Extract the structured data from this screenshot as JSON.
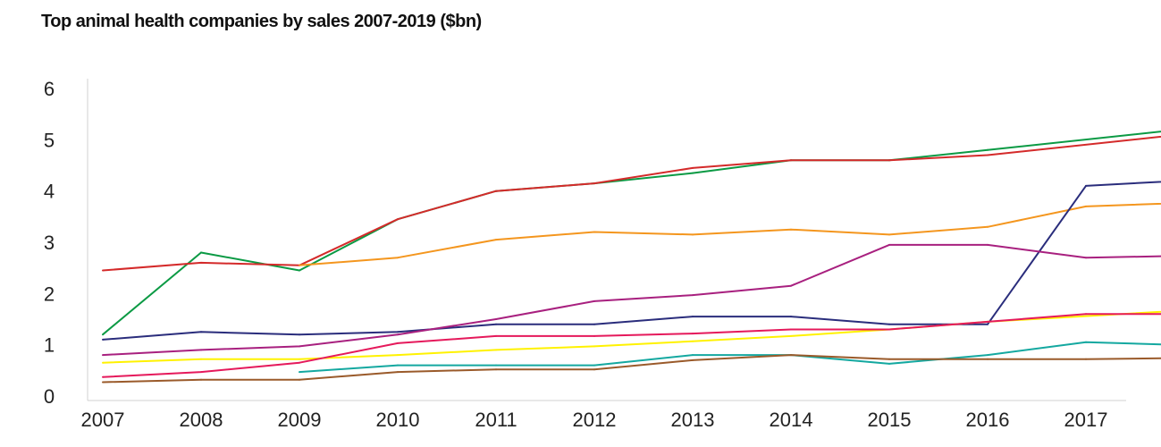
{
  "chart_data": {
    "type": "line",
    "title": "Top animal health companies by sales 2007-2019 ($bn)",
    "xlabel": "",
    "ylabel": "",
    "categories": [
      "2007",
      "2008",
      "2009",
      "2010",
      "2011",
      "2012",
      "2013",
      "2014",
      "2015",
      "2016",
      "2017"
    ],
    "x_extent_end": 11.45,
    "ylim": [
      0,
      6
    ],
    "yticks": [
      0,
      1,
      2,
      3,
      4,
      5,
      6
    ],
    "grid": false,
    "legend": "none",
    "series": [
      {
        "color": "#0b9a44",
        "points": [
          [
            0,
            1.2
          ],
          [
            1,
            2.8
          ],
          [
            2,
            2.45
          ],
          [
            3,
            3.45
          ],
          [
            4,
            4.0
          ],
          [
            5,
            4.15
          ],
          [
            6,
            4.35
          ],
          [
            7,
            4.6
          ],
          [
            8,
            4.6
          ],
          [
            9,
            4.8
          ],
          [
            11.45,
            5.3
          ]
        ]
      },
      {
        "color": "#d42a2a",
        "points": [
          [
            0,
            2.45
          ],
          [
            1,
            2.6
          ],
          [
            2,
            2.55
          ],
          [
            3,
            3.45
          ],
          [
            4,
            4.0
          ],
          [
            5,
            4.15
          ],
          [
            6,
            4.45
          ],
          [
            7,
            4.6
          ],
          [
            8,
            4.6
          ],
          [
            9,
            4.7
          ],
          [
            11.45,
            5.2
          ]
        ]
      },
      {
        "color": "#f4961e",
        "points": [
          [
            2,
            2.55
          ],
          [
            3,
            2.7
          ],
          [
            4,
            3.05
          ],
          [
            5,
            3.2
          ],
          [
            6,
            3.15
          ],
          [
            7,
            3.25
          ],
          [
            8,
            3.15
          ],
          [
            9,
            3.3
          ],
          [
            10,
            3.7
          ],
          [
            11.45,
            3.8
          ]
        ]
      },
      {
        "color": "#2a2d7c",
        "points": [
          [
            0,
            1.1
          ],
          [
            1,
            1.25
          ],
          [
            2,
            1.2
          ],
          [
            3,
            1.25
          ],
          [
            4,
            1.4
          ],
          [
            5,
            1.4
          ],
          [
            6,
            1.55
          ],
          [
            7,
            1.55
          ],
          [
            8,
            1.4
          ],
          [
            9,
            1.4
          ],
          [
            10,
            4.1
          ],
          [
            11.45,
            4.25
          ]
        ]
      },
      {
        "color": "#a8207f",
        "points": [
          [
            0,
            0.8
          ],
          [
            1,
            0.9
          ],
          [
            2,
            0.97
          ],
          [
            3,
            1.2
          ],
          [
            4,
            1.5
          ],
          [
            5,
            1.85
          ],
          [
            6,
            1.97
          ],
          [
            7,
            2.15
          ],
          [
            8,
            2.95
          ],
          [
            9,
            2.95
          ],
          [
            10,
            2.7
          ],
          [
            11.45,
            2.75
          ]
        ]
      },
      {
        "color": "#fff200",
        "points": [
          [
            0,
            0.65
          ],
          [
            1,
            0.72
          ],
          [
            2,
            0.72
          ],
          [
            3,
            0.8
          ],
          [
            4,
            0.9
          ],
          [
            5,
            0.97
          ],
          [
            6,
            1.07
          ],
          [
            7,
            1.17
          ],
          [
            8,
            1.3
          ],
          [
            9,
            1.45
          ],
          [
            11.45,
            1.72
          ]
        ]
      },
      {
        "color": "#e5195b",
        "points": [
          [
            0,
            0.37
          ],
          [
            1,
            0.47
          ],
          [
            2,
            0.65
          ],
          [
            3,
            1.03
          ],
          [
            4,
            1.17
          ],
          [
            5,
            1.17
          ],
          [
            6,
            1.22
          ],
          [
            7,
            1.3
          ],
          [
            8,
            1.3
          ],
          [
            9,
            1.45
          ],
          [
            10,
            1.6
          ],
          [
            11.45,
            1.6
          ]
        ]
      },
      {
        "color": "#14a8a0",
        "points": [
          [
            2,
            0.47
          ],
          [
            3,
            0.6
          ],
          [
            4,
            0.6
          ],
          [
            5,
            0.6
          ],
          [
            6,
            0.8
          ],
          [
            7,
            0.8
          ],
          [
            8,
            0.63
          ],
          [
            9,
            0.8
          ],
          [
            10,
            1.05
          ],
          [
            11.45,
            0.97
          ]
        ]
      },
      {
        "color": "#9a5a2a",
        "points": [
          [
            0,
            0.27
          ],
          [
            1,
            0.32
          ],
          [
            2,
            0.32
          ],
          [
            3,
            0.47
          ],
          [
            4,
            0.52
          ],
          [
            5,
            0.52
          ],
          [
            6,
            0.7
          ],
          [
            7,
            0.8
          ],
          [
            8,
            0.72
          ],
          [
            9,
            0.72
          ],
          [
            10,
            0.72
          ],
          [
            11.45,
            0.75
          ]
        ]
      }
    ]
  }
}
